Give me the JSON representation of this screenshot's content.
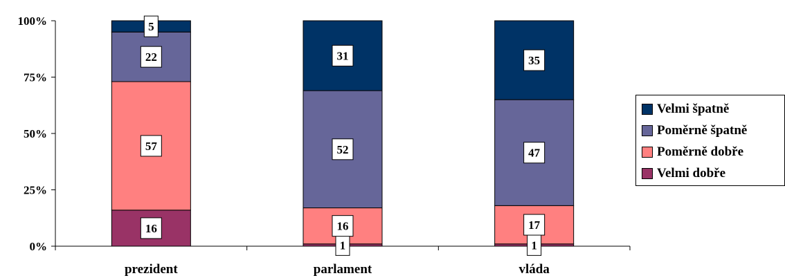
{
  "chart_data": {
    "type": "bar",
    "stacked": true,
    "percent": true,
    "categories": [
      "prezident",
      "parlament",
      "vláda"
    ],
    "series": [
      {
        "name": "Velmi dobře",
        "color": "#993366",
        "values": [
          16,
          1,
          1
        ]
      },
      {
        "name": "Poměrně dobře",
        "color": "#FF8080",
        "values": [
          57,
          16,
          17
        ]
      },
      {
        "name": "Poměrně špatně",
        "color": "#666699",
        "values": [
          22,
          52,
          47
        ]
      },
      {
        "name": "Velmi špatně",
        "color": "#003366",
        "values": [
          5,
          31,
          35
        ]
      }
    ],
    "data_labels": [
      [
        "16",
        "57",
        "22",
        "5"
      ],
      [
        "1",
        "16",
        "52",
        "31"
      ],
      [
        "1",
        "17",
        "47",
        "35"
      ]
    ],
    "y_ticks": [
      "0%",
      "25%",
      "50%",
      "75%",
      "100%"
    ],
    "ylim": [
      0,
      100
    ],
    "grid": false,
    "legend_position": "right",
    "legend_order": [
      "Velmi špatně",
      "Poměrně špatně",
      "Poměrně dobře",
      "Velmi dobře"
    ]
  }
}
